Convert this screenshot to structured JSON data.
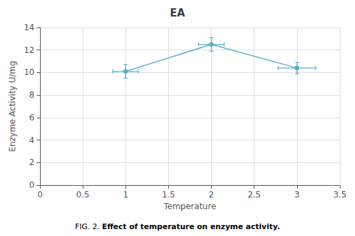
{
  "chart_data": {
    "type": "line",
    "title": "EA",
    "xlabel": "Temperature",
    "ylabel": "Enzyme Activity U/mg",
    "annotations": [
      "FIG. 2.",
      "Effect of temperature on enzyme activity."
    ],
    "x": [
      1,
      2,
      3
    ],
    "values": [
      10.1,
      12.5,
      10.4
    ],
    "xerr": [
      0.15,
      0.15,
      0.22
    ],
    "yerr": [
      0.6,
      0.6,
      0.5
    ],
    "color": "#5badce",
    "marker": "circle",
    "xlim": [
      0,
      3.5
    ],
    "xticks": [
      0,
      0.5,
      1,
      1.5,
      2,
      2.5,
      3,
      3.5
    ],
    "ylim": [
      0,
      14
    ],
    "yticks": [
      0,
      2,
      4,
      6,
      8,
      10,
      12,
      14
    ],
    "grid": true
  }
}
